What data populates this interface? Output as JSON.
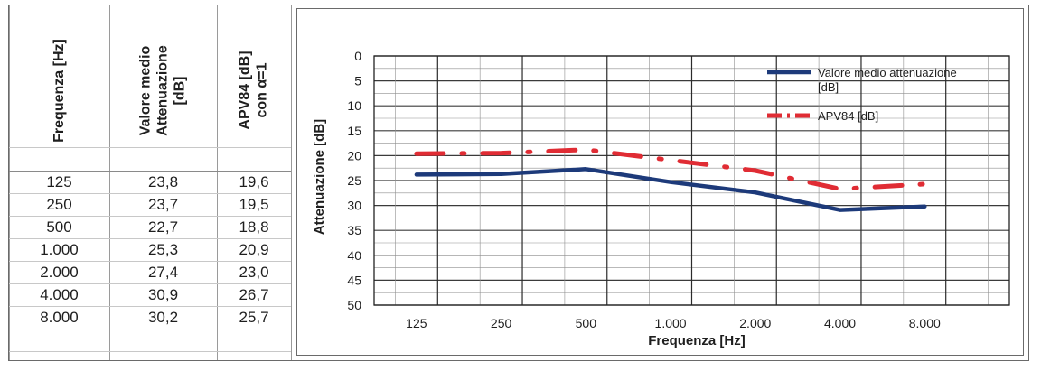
{
  "table": {
    "headers": [
      "Frequenza [Hz]",
      "Valore medio\nAttenuazione\n[dB]",
      "APV84 [dB]\ncon α=1"
    ],
    "rows": [
      [
        "125",
        "23,8",
        "19,6"
      ],
      [
        "250",
        "23,7",
        "19,5"
      ],
      [
        "500",
        "22,7",
        "18,8"
      ],
      [
        "1.000",
        "25,3",
        "20,9"
      ],
      [
        "2.000",
        "27,4",
        "23,0"
      ],
      [
        "4.000",
        "30,9",
        "26,7"
      ],
      [
        "8.000",
        "30,2",
        "25,7"
      ]
    ]
  },
  "chart_data": {
    "type": "line",
    "xlabel": "Frequenza [Hz]",
    "ylabel": "Attenuazione [dB]",
    "categories": [
      "125",
      "250",
      "500",
      "1.000",
      "2.000",
      "4.000",
      "8.000"
    ],
    "y_ticks": [
      "0",
      "5",
      "10",
      "15",
      "20",
      "25",
      "30",
      "35",
      "40",
      "45",
      "50"
    ],
    "ylim": [
      0,
      50
    ],
    "y_inverted": true,
    "grid": true,
    "legend_position": "top-right",
    "series": [
      {
        "name": "Valore medio attenuazione [dB]",
        "values": [
          23.8,
          23.7,
          22.7,
          25.3,
          27.4,
          30.9,
          30.2
        ],
        "color": "#1d3a7a",
        "style": "solid"
      },
      {
        "name": "APV84 [dB]",
        "values": [
          19.6,
          19.5,
          18.8,
          20.9,
          23.0,
          26.7,
          25.7
        ],
        "color": "#e02c34",
        "style": "dash-dot"
      }
    ]
  }
}
